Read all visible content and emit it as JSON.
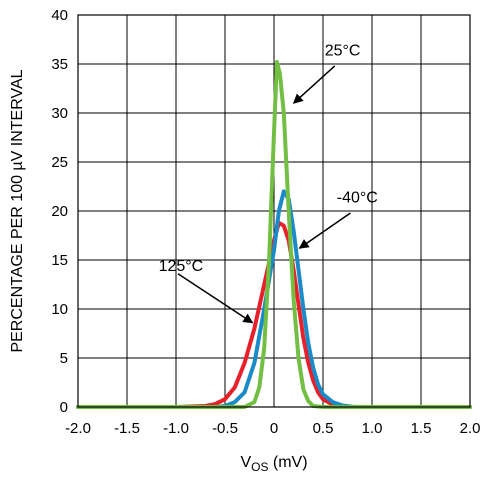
{
  "chart_data": {
    "type": "line",
    "xlabel_main": "V",
    "xlabel_sub": "OS",
    "xlabel_suffix": " (mV)",
    "ylabel": "PERCENTAGE PER 100 µV INTERVAL",
    "xlim": [
      -2.0,
      2.0
    ],
    "ylim": [
      0,
      40
    ],
    "x_ticks": [
      "-2.0",
      "-1.5",
      "-1.0",
      "-0.5",
      "0",
      "0.5",
      "1.0",
      "1.5",
      "2.0"
    ],
    "y_ticks": [
      "0",
      "5",
      "10",
      "15",
      "20",
      "25",
      "30",
      "35",
      "40"
    ],
    "grid": true,
    "series": [
      {
        "name": "125°C",
        "color": "#e8202a",
        "points": [
          [
            -2.0,
            0
          ],
          [
            -1.0,
            0
          ],
          [
            -0.7,
            0.1
          ],
          [
            -0.6,
            0.3
          ],
          [
            -0.5,
            0.8
          ],
          [
            -0.4,
            2
          ],
          [
            -0.3,
            4.5
          ],
          [
            -0.2,
            8
          ],
          [
            -0.1,
            12.5
          ],
          [
            0.0,
            17
          ],
          [
            0.05,
            18.8
          ],
          [
            0.1,
            18.5
          ],
          [
            0.15,
            17
          ],
          [
            0.2,
            14
          ],
          [
            0.25,
            10.5
          ],
          [
            0.3,
            7
          ],
          [
            0.35,
            4.5
          ],
          [
            0.4,
            2.7
          ],
          [
            0.45,
            1.5
          ],
          [
            0.5,
            0.8
          ],
          [
            0.6,
            0.25
          ],
          [
            0.7,
            0.05
          ],
          [
            0.8,
            0
          ],
          [
            2.0,
            0
          ]
        ]
      },
      {
        "name": "-40°C",
        "color": "#1b8ac8",
        "points": [
          [
            -2.0,
            0
          ],
          [
            -0.6,
            0
          ],
          [
            -0.5,
            0.1
          ],
          [
            -0.4,
            0.5
          ],
          [
            -0.3,
            1.5
          ],
          [
            -0.2,
            4.5
          ],
          [
            -0.1,
            10
          ],
          [
            0.0,
            16
          ],
          [
            0.05,
            20
          ],
          [
            0.1,
            22
          ],
          [
            0.15,
            21.2
          ],
          [
            0.2,
            18
          ],
          [
            0.25,
            14
          ],
          [
            0.3,
            10
          ],
          [
            0.35,
            6.5
          ],
          [
            0.4,
            4
          ],
          [
            0.45,
            2.3
          ],
          [
            0.5,
            1.3
          ],
          [
            0.6,
            0.5
          ],
          [
            0.7,
            0.15
          ],
          [
            0.8,
            0.03
          ],
          [
            0.9,
            0
          ],
          [
            2.0,
            0
          ]
        ]
      },
      {
        "name": "25°C",
        "color": "#72bf44",
        "points": [
          [
            -2.0,
            0
          ],
          [
            -0.3,
            0
          ],
          [
            -0.2,
            0.5
          ],
          [
            -0.15,
            2
          ],
          [
            -0.1,
            6
          ],
          [
            -0.05,
            15
          ],
          [
            0.0,
            28
          ],
          [
            0.03,
            35.2
          ],
          [
            0.06,
            34
          ],
          [
            0.1,
            30
          ],
          [
            0.15,
            20
          ],
          [
            0.2,
            11
          ],
          [
            0.25,
            5
          ],
          [
            0.3,
            1.8
          ],
          [
            0.35,
            0.6
          ],
          [
            0.4,
            0.1
          ],
          [
            0.5,
            0
          ],
          [
            2.0,
            0
          ]
        ]
      }
    ],
    "annotations": [
      {
        "text": "25°C",
        "series": "25°C"
      },
      {
        "text": "-40°C",
        "series": "-40°C"
      },
      {
        "text": "125°C",
        "series": "125°C"
      }
    ]
  }
}
